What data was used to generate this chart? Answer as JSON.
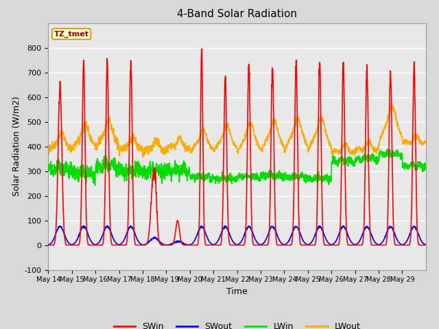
{
  "title": "4-Band Solar Radiation",
  "xlabel": "Time",
  "ylabel": "Solar Radiation (W/m2)",
  "ylim": [
    -100,
    900
  ],
  "yticks": [
    -100,
    0,
    100,
    200,
    300,
    400,
    500,
    600,
    700,
    800
  ],
  "fig_bg_color": "#d8d8d8",
  "plot_bg_color": "#e8e8e8",
  "grid_color": "white",
  "legend_label": "TZ_tmet",
  "series": {
    "SWin": {
      "color": "#ff0000",
      "lw": 1.2
    },
    "SWout": {
      "color": "#0000ff",
      "lw": 1.2
    },
    "LWin": {
      "color": "#00dd00",
      "lw": 1.2
    },
    "LWout": {
      "color": "#ffaa00",
      "lw": 1.2
    }
  },
  "x_tick_labels": [
    "May 14",
    "May 15",
    "May 16",
    "May 17",
    "May 18",
    "May 19",
    "May 20",
    "May 21",
    "May 22",
    "May 23",
    "May 24",
    "May 25",
    "May 26",
    "May 27",
    "May 28",
    "May 29"
  ],
  "n_days": 16,
  "pts_per_day": 144
}
